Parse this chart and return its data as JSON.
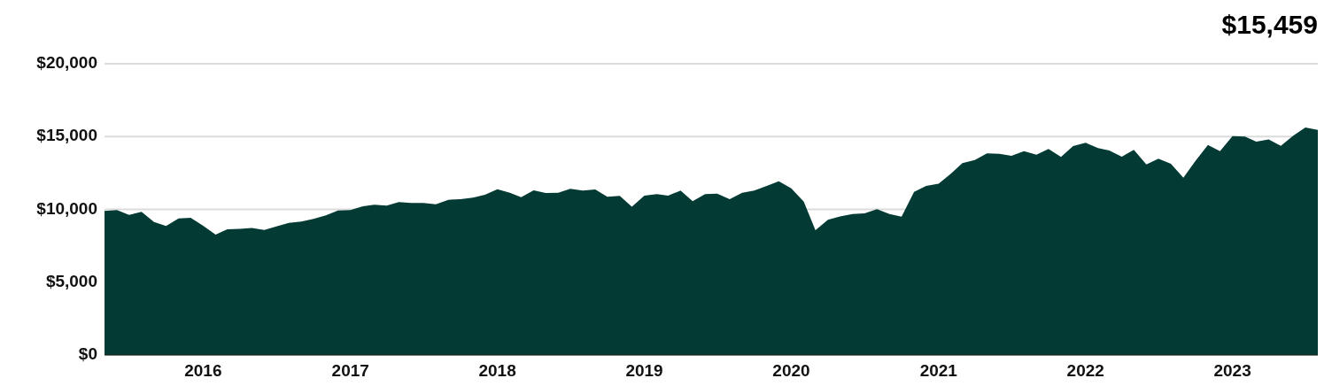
{
  "chart_data": {
    "type": "area",
    "x": [
      "2015-05",
      "2015-06",
      "2015-07",
      "2015-08",
      "2015-09",
      "2015-10",
      "2015-11",
      "2015-12",
      "2016-01",
      "2016-02",
      "2016-03",
      "2016-04",
      "2016-05",
      "2016-06",
      "2016-07",
      "2016-08",
      "2016-09",
      "2016-10",
      "2016-11",
      "2016-12",
      "2017-01",
      "2017-02",
      "2017-03",
      "2017-04",
      "2017-05",
      "2017-06",
      "2017-07",
      "2017-08",
      "2017-09",
      "2017-10",
      "2017-11",
      "2017-12",
      "2018-01",
      "2018-02",
      "2018-03",
      "2018-04",
      "2018-05",
      "2018-06",
      "2018-07",
      "2018-08",
      "2018-09",
      "2018-10",
      "2018-11",
      "2018-12",
      "2019-01",
      "2019-02",
      "2019-03",
      "2019-04",
      "2019-05",
      "2019-06",
      "2019-07",
      "2019-08",
      "2019-09",
      "2019-10",
      "2019-11",
      "2019-12",
      "2020-01",
      "2020-02",
      "2020-03",
      "2020-04",
      "2020-05",
      "2020-06",
      "2020-07",
      "2020-08",
      "2020-09",
      "2020-10",
      "2020-11",
      "2020-12",
      "2021-01",
      "2021-02",
      "2021-03",
      "2021-04",
      "2021-05",
      "2021-06",
      "2021-07",
      "2021-08",
      "2021-09",
      "2021-10",
      "2021-11",
      "2021-12",
      "2022-01",
      "2022-02",
      "2022-03",
      "2022-04",
      "2022-05",
      "2022-06",
      "2022-07",
      "2022-08",
      "2022-09",
      "2022-10",
      "2022-11",
      "2022-12",
      "2023-01",
      "2023-02",
      "2023-03",
      "2023-04",
      "2023-05",
      "2023-06",
      "2023-07",
      "2023-08"
    ],
    "series": [
      {
        "color": "#033a34",
        "values": [
          9890,
          9950,
          9620,
          9830,
          9140,
          8860,
          9380,
          9420,
          8880,
          8270,
          8630,
          8670,
          8730,
          8590,
          8830,
          9080,
          9160,
          9340,
          9590,
          9930,
          9950,
          10210,
          10320,
          10260,
          10500,
          10440,
          10440,
          10350,
          10660,
          10700,
          10800,
          11000,
          11390,
          11140,
          10840,
          11310,
          11120,
          11140,
          11410,
          11290,
          11370,
          10860,
          10920,
          10190,
          10940,
          11050,
          10940,
          11290,
          10560,
          11050,
          11080,
          10700,
          11140,
          11290,
          11610,
          11930,
          11450,
          10530,
          8570,
          9280,
          9520,
          9680,
          9730,
          10010,
          9680,
          9500,
          11200,
          11610,
          11770,
          12460,
          13170,
          13390,
          13840,
          13820,
          13680,
          14000,
          13760,
          14150,
          13600,
          14350,
          14570,
          14210,
          14040,
          13620,
          14090,
          13090,
          13480,
          13130,
          12180,
          13330,
          14430,
          14000,
          15030,
          15000,
          14650,
          14810,
          14360,
          15060,
          15620,
          15459
        ]
      }
    ],
    "xlim": [
      "2015-05",
      "2023-08"
    ],
    "xticks": [
      {
        "value": "2016",
        "label": "2016"
      },
      {
        "value": "2017",
        "label": "2017"
      },
      {
        "value": "2018",
        "label": "2018"
      },
      {
        "value": "2019",
        "label": "2019"
      },
      {
        "value": "2020",
        "label": "2020"
      },
      {
        "value": "2021",
        "label": "2021"
      },
      {
        "value": "2022",
        "label": "2022"
      },
      {
        "value": "2023",
        "label": "2023"
      }
    ],
    "ylim": [
      0,
      20000
    ],
    "yticks": [
      {
        "value": 0,
        "label": "$0"
      },
      {
        "value": 5000,
        "label": "$5,000"
      },
      {
        "value": 10000,
        "label": "$10,000"
      },
      {
        "value": 15000,
        "label": "$15,000"
      },
      {
        "value": 20000,
        "label": "$20,000"
      }
    ],
    "grid": "y",
    "annotations": [
      "$15,459"
    ]
  }
}
